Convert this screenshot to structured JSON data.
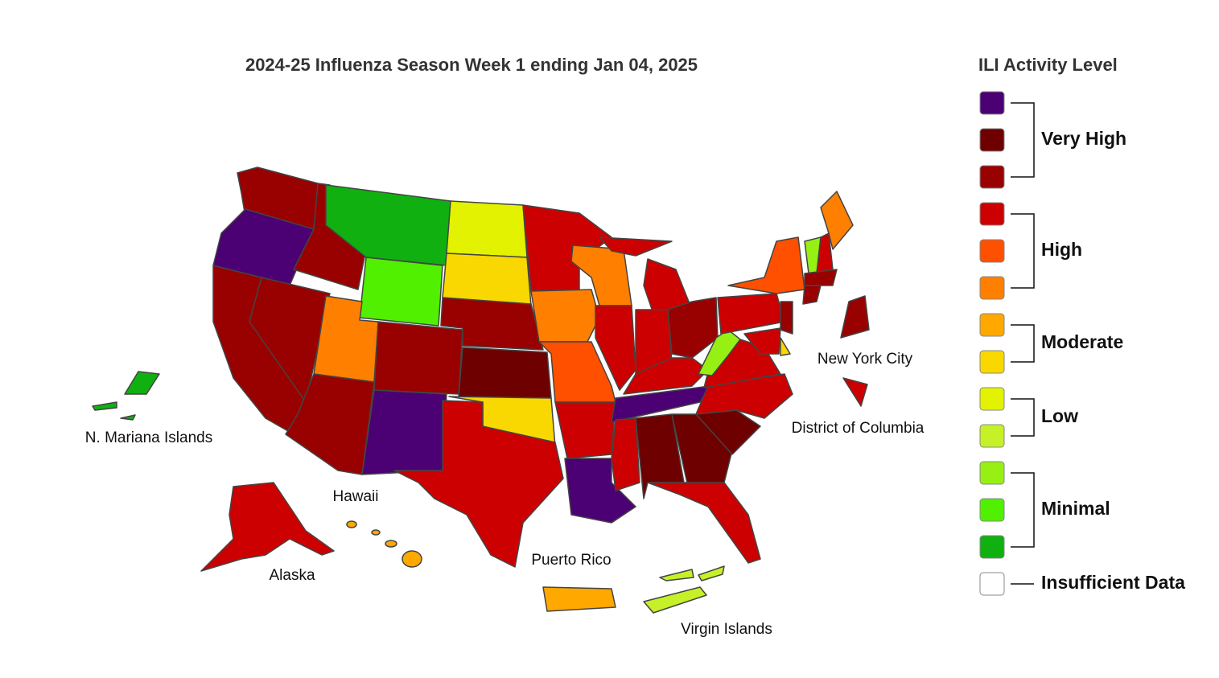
{
  "title": "2024-25 Influenza Season Week 1 ending Jan 04, 2025",
  "legend": {
    "title": "ILI Activity Level",
    "groups": [
      {
        "label": "Very High",
        "colors": [
          "#4b0073",
          "#6e0000",
          "#990000"
        ]
      },
      {
        "label": "High",
        "colors": [
          "#cc0000",
          "#ff5000",
          "#ff8000"
        ]
      },
      {
        "label": "Moderate",
        "colors": [
          "#ffa800",
          "#f8d800"
        ]
      },
      {
        "label": "Low",
        "colors": [
          "#e2f200",
          "#c6f028"
        ]
      },
      {
        "label": "Minimal",
        "colors": [
          "#96f014",
          "#50f000",
          "#10b010"
        ]
      },
      {
        "label": "Insufficient Data",
        "colors": [
          "#ffffff"
        ]
      }
    ]
  },
  "map_labels": [
    "N. Mariana Islands",
    "Hawaii",
    "Alaska",
    "Puerto Rico",
    "Virgin Islands",
    "New York City",
    "District of Columbia"
  ]
}
